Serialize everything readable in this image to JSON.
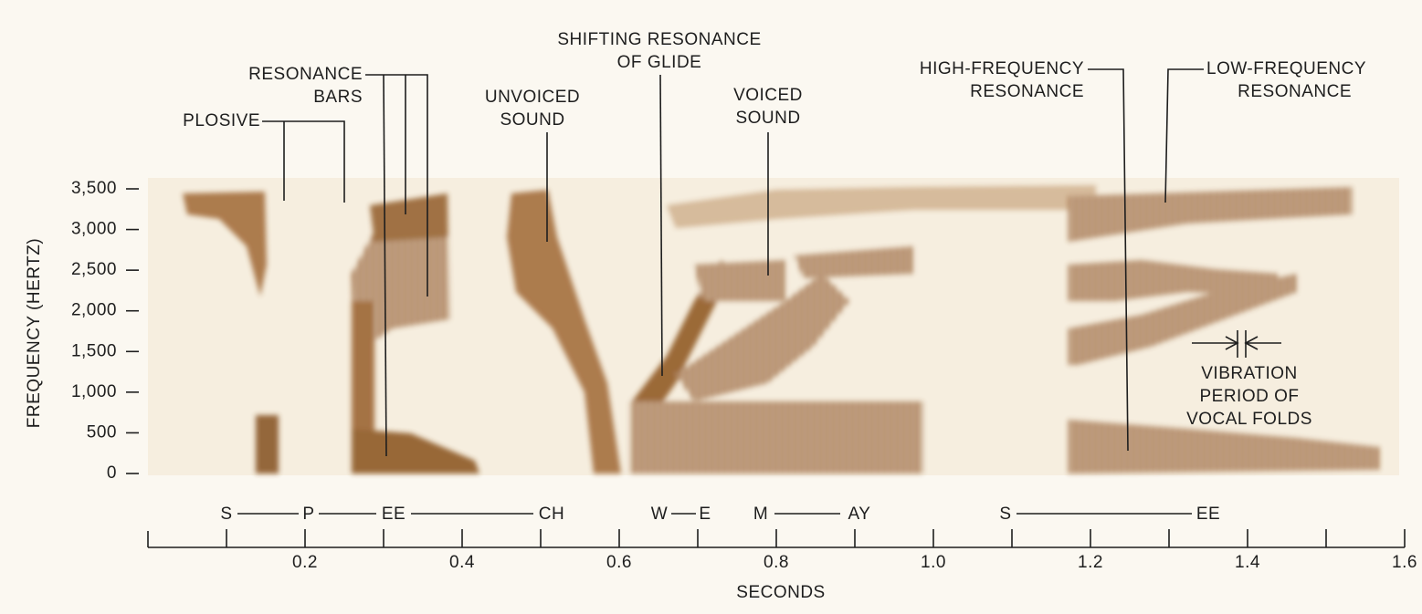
{
  "chart_data": {
    "type": "spectrogram",
    "ylabel": "FREQUENCY (HERTZ)",
    "xlabel": "SECONDS",
    "ylim": [
      0,
      3500
    ],
    "yticks": [
      0,
      500,
      {
        "value": 1000,
        "label": "1,000"
      },
      {
        "value": 1500,
        "label": "1,500"
      },
      {
        "value": 2000,
        "label": "2,000"
      },
      {
        "value": 2500,
        "label": "2,500"
      },
      {
        "value": 3000,
        "label": "3,000"
      },
      {
        "value": 3500,
        "label": "3,500"
      }
    ],
    "xlim": [
      0,
      1.6
    ],
    "xticks": [
      0.2,
      0.4,
      0.6,
      0.8,
      {
        "value": 1,
        "label": "1.0"
      },
      1.2,
      1.4,
      1.6
    ],
    "xminor_ticks": [
      0.1,
      0.3,
      0.5,
      0.7,
      0.9,
      1.1,
      1.3,
      1.5
    ],
    "color": "#9a6636",
    "phonetic_labels": [
      "S",
      "P",
      "EE",
      "CH",
      "W",
      "E",
      "M",
      "AY",
      "S",
      "EE"
    ],
    "annotations": [
      {
        "lines": [
          "PLOSIVE"
        ]
      },
      {
        "lines": [
          "RESONANCE",
          "BARS"
        ]
      },
      {
        "lines": [
          "UNVOICED",
          "SOUND"
        ]
      },
      {
        "lines": [
          "SHIFTING RESONANCE",
          "OF GLIDE"
        ]
      },
      {
        "lines": [
          "VOICED",
          "SOUND"
        ]
      },
      {
        "lines": [
          "HIGH-FREQUENCY",
          "RESONANCE"
        ]
      },
      {
        "lines": [
          "LOW-FREQUENCY",
          "RESONANCE"
        ]
      },
      {
        "lines": [
          "VIBRATION",
          "PERIOD OF",
          "VOCAL FOLDS"
        ]
      }
    ]
  }
}
